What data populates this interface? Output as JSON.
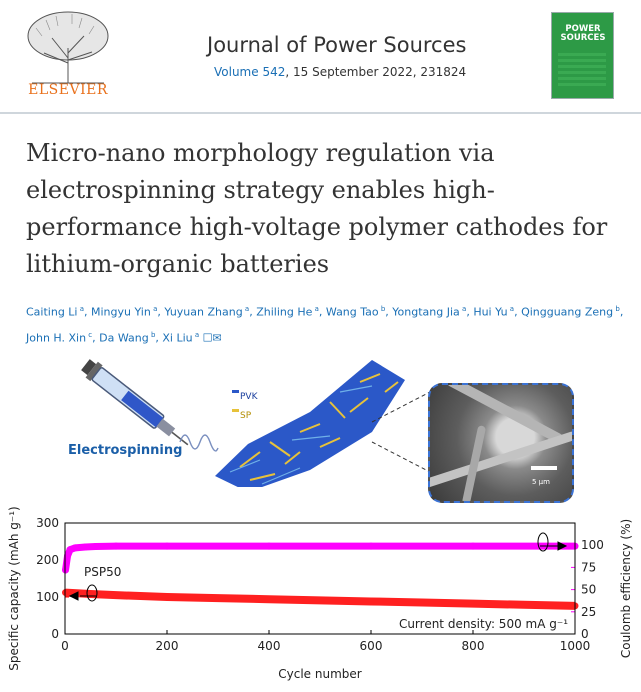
{
  "header": {
    "publisher_logo_text": "ELSEVIER",
    "journal_title": "Journal of Power Sources",
    "volume_link": "Volume 542",
    "volume_rest": ", 15 September 2022, 231824",
    "cover_title": "POWER SOURCES"
  },
  "article": {
    "title": "Micro-nano morphology regulation via electrospinning strategy enables high-performance high-voltage polymer cathodes for lithium-organic batteries",
    "authors": [
      {
        "name": "Caiting Li",
        "aff": "a"
      },
      {
        "name": "Mingyu Yin",
        "aff": "a"
      },
      {
        "name": "Yuyuan Zhang",
        "aff": "a"
      },
      {
        "name": "Zhiling He",
        "aff": "a"
      },
      {
        "name": "Wang Tao",
        "aff": "b"
      },
      {
        "name": "Yongtang Jia",
        "aff": "a"
      },
      {
        "name": "Hui Yu",
        "aff": "a"
      },
      {
        "name": "Qingguang Zeng",
        "aff": "b"
      },
      {
        "name": "John H. Xin",
        "aff": "c"
      },
      {
        "name": "Da Wang",
        "aff": "b"
      },
      {
        "name": "Xi Liu",
        "aff": "a"
      }
    ]
  },
  "graphical_abstract": {
    "electrospinning_label": "Electrospinning",
    "legend_pvk": "PVK",
    "legend_sp": "SP",
    "scale_label": "5 μm"
  },
  "chart_data": {
    "type": "scatter",
    "xlabel": "Cycle number",
    "ylabel_left": "Specific capacity (mAh g⁻¹)",
    "ylabel_right": "Coulomb efficiency (%)",
    "xlim": [
      0,
      1000
    ],
    "ylim_left": [
      0,
      300
    ],
    "ylim_right": [
      0,
      125
    ],
    "x_ticks": [
      0,
      200,
      400,
      600,
      800,
      1000
    ],
    "y_left_ticks": [
      0,
      100,
      200,
      300
    ],
    "y_right_ticks": [
      0,
      25,
      50,
      75,
      100
    ],
    "annotations": [
      "PSP50",
      "Current density: 500 mA g⁻¹"
    ],
    "series": [
      {
        "axis": "left",
        "color": "#ff2020",
        "x": [
          1,
          50,
          100,
          200,
          300,
          400,
          500,
          600,
          700,
          800,
          900,
          1000
        ],
        "values": [
          112,
          108,
          105,
          100,
          97,
          94,
          91,
          88,
          85,
          82,
          79,
          76
        ]
      },
      {
        "axis": "right",
        "color": "#ff00ff",
        "x": [
          1,
          5,
          10,
          20,
          40,
          60,
          100,
          200,
          400,
          600,
          800,
          1000
        ],
        "values": [
          72,
          88,
          95,
          97,
          98,
          98.5,
          99,
          99,
          99,
          99,
          99,
          99
        ]
      }
    ]
  }
}
